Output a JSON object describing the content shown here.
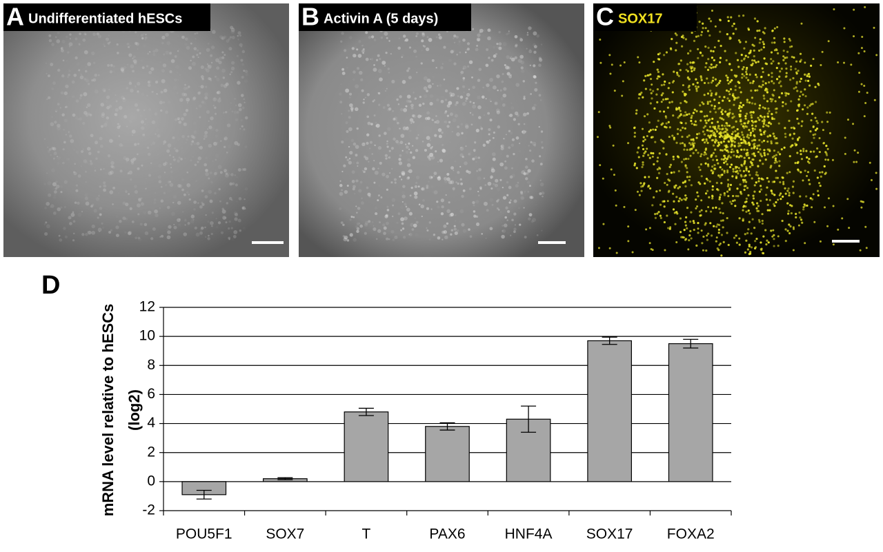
{
  "panels": [
    {
      "letter": "A",
      "caption": "Undifferentiated hESCs"
    },
    {
      "letter": "B",
      "caption": "Activin A (5 days)"
    },
    {
      "letter": "C",
      "caption": "SOX17"
    }
  ],
  "chart_data": {
    "type": "bar",
    "letter": "D",
    "ylabel": [
      "mRNA level relative to hESCs",
      "(log2)"
    ],
    "categories": [
      "POU5F1",
      "SOX7",
      "T",
      "PAX6",
      "HNF4A",
      "SOX17",
      "FOXA2"
    ],
    "values": [
      -0.9,
      0.2,
      4.8,
      3.8,
      4.3,
      9.7,
      9.5
    ],
    "errors": [
      0.3,
      0.07,
      0.25,
      0.25,
      0.9,
      0.25,
      0.3
    ],
    "color": "#a6a6a6",
    "ylim": [
      -2,
      12
    ],
    "yticks": [
      -2,
      0,
      2,
      4,
      6,
      8,
      10,
      12
    ],
    "grid": true
  }
}
